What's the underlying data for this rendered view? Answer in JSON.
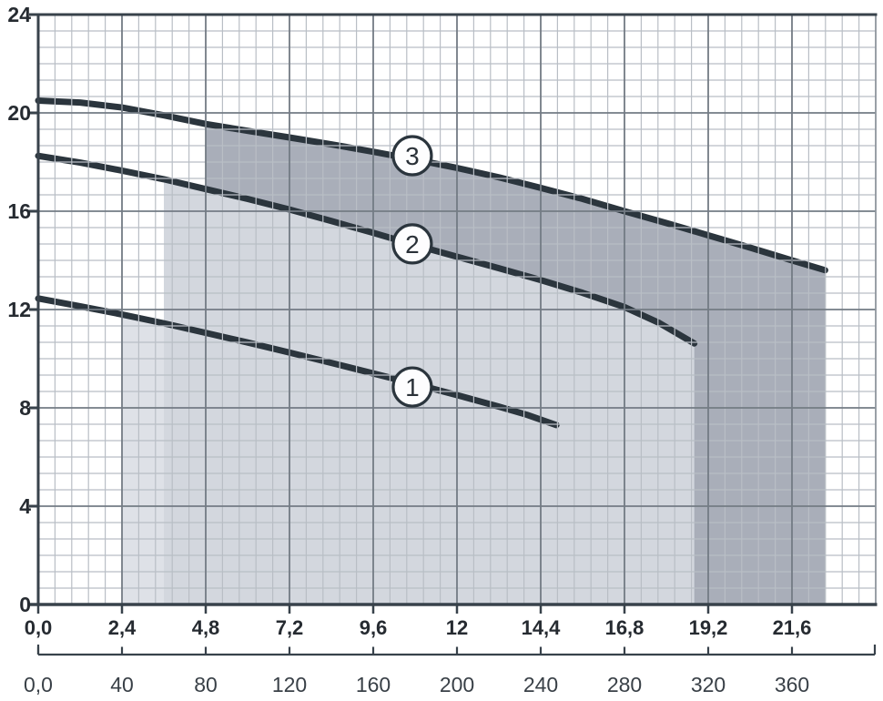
{
  "chart_data": {
    "type": "line",
    "title": "",
    "x_range": [
      0,
      24
    ],
    "y_range": [
      0,
      24
    ],
    "grid": {
      "on": true,
      "x_minors_per_major": 5,
      "y_minors_per_major": 6
    },
    "y_axis": {
      "tick_labels": [
        "24",
        "20",
        "16",
        "12",
        "8",
        "4",
        "0"
      ],
      "tick_values": [
        24,
        20,
        16,
        12,
        8,
        4,
        0
      ]
    },
    "x_axis_primary": {
      "tick_labels": [
        "0,0",
        "2,4",
        "4,8",
        "7,2",
        "9,6",
        "12",
        "14,4",
        "16,8",
        "19,2",
        "21,6"
      ],
      "tick_values": [
        0,
        2.4,
        4.8,
        7.2,
        9.6,
        12,
        14.4,
        16.8,
        19.2,
        21.6
      ]
    },
    "x_axis_secondary": {
      "tick_labels": [
        "0,0",
        "40",
        "80",
        "120",
        "160",
        "200",
        "240",
        "280",
        "320",
        "360"
      ],
      "tick_values": [
        0,
        40,
        80,
        120,
        160,
        200,
        240,
        280,
        320,
        360
      ],
      "positions_in_primary_units": [
        0,
        2.4,
        4.8,
        7.2,
        9.6,
        12,
        14.4,
        16.8,
        19.2,
        21.6
      ]
    },
    "series": [
      {
        "id": 1,
        "label": "1",
        "badge": {
          "x": 10.72,
          "y": 8.85
        },
        "shade_from_x": 2.4,
        "points": [
          [
            0,
            12.45
          ],
          [
            1.2,
            12.13
          ],
          [
            2.4,
            11.8
          ],
          [
            3.6,
            11.44
          ],
          [
            4.8,
            11.05
          ],
          [
            6.0,
            10.66
          ],
          [
            7.2,
            10.25
          ],
          [
            8.4,
            9.83
          ],
          [
            9.6,
            9.4
          ],
          [
            10.8,
            8.97
          ],
          [
            12.0,
            8.52
          ],
          [
            13.2,
            8.05
          ],
          [
            14.0,
            7.72
          ],
          [
            14.85,
            7.3
          ]
        ]
      },
      {
        "id": 2,
        "label": "2",
        "badge": {
          "x": 10.72,
          "y": 14.67
        },
        "shade_from_x": 3.6,
        "points": [
          [
            0,
            18.25
          ],
          [
            1.2,
            17.98
          ],
          [
            2.4,
            17.65
          ],
          [
            3.6,
            17.3
          ],
          [
            4.8,
            16.9
          ],
          [
            6.0,
            16.5
          ],
          [
            7.2,
            16.07
          ],
          [
            8.4,
            15.6
          ],
          [
            9.6,
            15.12
          ],
          [
            10.8,
            14.62
          ],
          [
            12.0,
            14.15
          ],
          [
            13.2,
            13.68
          ],
          [
            14.4,
            13.2
          ],
          [
            15.6,
            12.68
          ],
          [
            16.8,
            12.1
          ],
          [
            17.8,
            11.45
          ],
          [
            18.8,
            10.62
          ]
        ]
      },
      {
        "id": 3,
        "label": "3",
        "badge": {
          "x": 10.72,
          "y": 18.26
        },
        "shade_from_x": 4.8,
        "points": [
          [
            0,
            20.5
          ],
          [
            1.2,
            20.42
          ],
          [
            2.4,
            20.22
          ],
          [
            3.6,
            19.9
          ],
          [
            4.8,
            19.55
          ],
          [
            6.0,
            19.27
          ],
          [
            7.2,
            19.0
          ],
          [
            8.4,
            18.72
          ],
          [
            9.6,
            18.42
          ],
          [
            10.8,
            18.1
          ],
          [
            12.0,
            17.76
          ],
          [
            13.2,
            17.38
          ],
          [
            14.4,
            16.95
          ],
          [
            15.6,
            16.5
          ],
          [
            16.8,
            16.0
          ],
          [
            18.0,
            15.52
          ],
          [
            19.2,
            15.02
          ],
          [
            20.4,
            14.52
          ],
          [
            21.6,
            14.0
          ],
          [
            22.55,
            13.6
          ]
        ]
      }
    ]
  },
  "colors": {
    "curve": "#2b353d",
    "shade_series1": "#dee1e7",
    "shade_series2": "#d3d7de",
    "shade_series3": "#a9aeb9",
    "grid_minor": "#b9bec5",
    "grid_major": "#737b84",
    "axis": "#38424b",
    "right_border": "#8e959d",
    "label": "#262b31",
    "secondary_label": "#394047",
    "badge_fill": "#fdfdfe"
  }
}
